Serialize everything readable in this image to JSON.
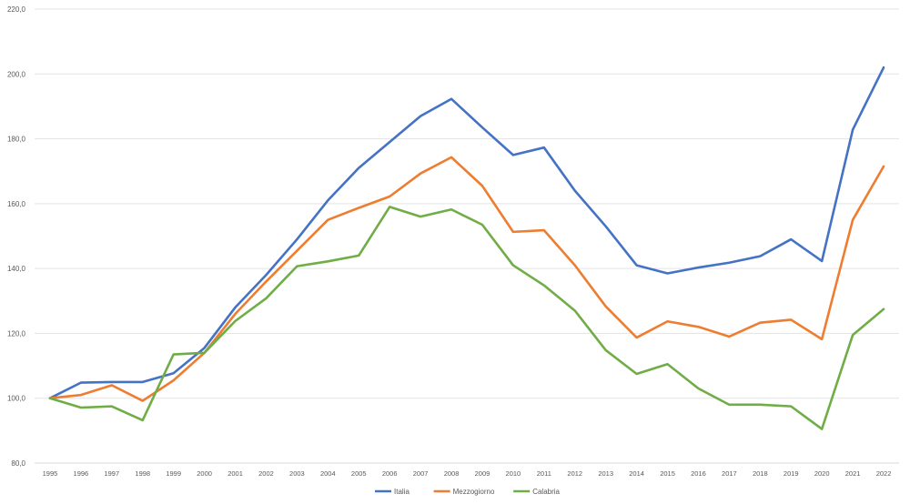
{
  "chart_data": {
    "type": "line",
    "title": "",
    "xlabel": "",
    "ylabel": "",
    "x": [
      "1995",
      "1996",
      "1997",
      "1998",
      "1999",
      "2000",
      "2001",
      "2002",
      "2003",
      "2004",
      "2005",
      "2006",
      "2007",
      "2008",
      "2009",
      "2010",
      "2011",
      "2012",
      "2013",
      "2014",
      "2015",
      "2016",
      "2017",
      "2018",
      "2019",
      "2020",
      "2021",
      "2022"
    ],
    "ylim": [
      80,
      220
    ],
    "ytick_step": 20,
    "ytick_labels": [
      "80,0",
      "100,0",
      "120,0",
      "140,0",
      "160,0",
      "180,0",
      "200,0",
      "220,0"
    ],
    "grid": true,
    "legend_position": "bottom",
    "series": [
      {
        "name": "Italia",
        "color": "#4472c4",
        "values": [
          100,
          104.8,
          105,
          105,
          107.7,
          115.5,
          128,
          138,
          149,
          161,
          171,
          179,
          187,
          192.3,
          183.5,
          175,
          177.3,
          164,
          153,
          141,
          138.5,
          140.3,
          141.8,
          143.8,
          149,
          142.3,
          182.8,
          202
        ]
      },
      {
        "name": "Mezzogiorno",
        "color": "#ed7d31",
        "values": [
          100,
          101,
          104,
          99.2,
          105.5,
          114,
          126,
          136,
          145.5,
          155,
          158.7,
          162.2,
          169.3,
          174.3,
          165.5,
          151.3,
          151.8,
          141,
          128.3,
          118.7,
          123.7,
          122,
          119,
          123.3,
          124.2,
          118.2,
          155,
          171.5
        ]
      },
      {
        "name": "Calabria",
        "color": "#70ad47",
        "values": [
          100,
          97.1,
          97.5,
          93.2,
          113.5,
          114,
          123.8,
          130.8,
          140.7,
          142.2,
          144,
          159,
          156,
          158.2,
          153.5,
          141,
          134.8,
          127,
          114.8,
          107.5,
          110.5,
          103,
          98,
          98,
          97.5,
          90.5,
          119.5,
          127.5
        ]
      }
    ]
  }
}
